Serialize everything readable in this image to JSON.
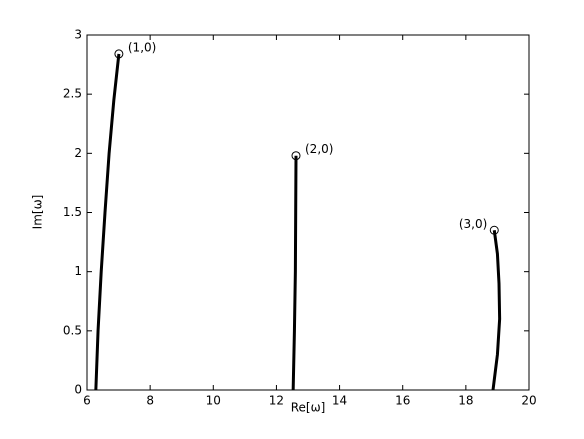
{
  "chart_data": {
    "type": "line",
    "xlabel": "Re[ω]",
    "ylabel": "Im[ω]",
    "xlim": [
      6,
      20
    ],
    "xticks": [
      6,
      8,
      10,
      12,
      14,
      16,
      18,
      20
    ],
    "ylim": [
      0,
      3
    ],
    "yticks": [
      0,
      0.5,
      1,
      1.5,
      2,
      2.5,
      3
    ],
    "grid": false,
    "marker_at_end": "circle",
    "series": [
      {
        "name": "(1,0)",
        "color": "#000000",
        "x": [
          6.28,
          6.35,
          6.45,
          6.57,
          6.7,
          6.85,
          7.01
        ],
        "values": [
          0,
          0.5,
          1.0,
          1.5,
          2.0,
          2.45,
          2.84
        ]
      },
      {
        "name": "(2,0)",
        "color": "#000000",
        "x": [
          12.53,
          12.57,
          12.6,
          12.61,
          12.62
        ],
        "values": [
          0,
          0.5,
          1.0,
          1.5,
          1.98
        ]
      },
      {
        "name": "(3,0)",
        "color": "#000000",
        "x": [
          18.86,
          19.0,
          19.07,
          19.05,
          19.0,
          18.9
        ],
        "values": [
          0,
          0.3,
          0.6,
          0.9,
          1.15,
          1.35
        ]
      }
    ]
  }
}
